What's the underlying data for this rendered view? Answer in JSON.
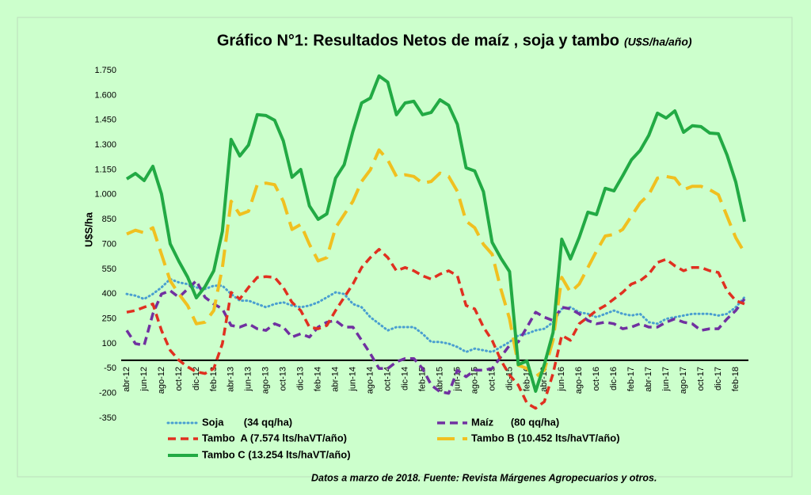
{
  "chart_data": {
    "type": "line",
    "title": "Gráfico N°1: Resultados Netos de maíz , soja y tambo",
    "subtitle": "(U$S/ha/año)",
    "y_label": "U$S/ha",
    "footnote": "Datos a marzo de 2018. Fuente: Revista Márgenes Agropecuarios y otros.",
    "grid": false,
    "zero_line": true,
    "ylim": [
      -350,
      1750
    ],
    "yticks": [
      -350,
      -200,
      -50,
      100,
      250,
      400,
      550,
      700,
      850,
      {
        "value": 1000,
        "label": "1.000"
      },
      {
        "value": 1150,
        "label": "1.150"
      },
      {
        "value": 1300,
        "label": "1.300"
      },
      {
        "value": 1450,
        "label": "1.450"
      },
      {
        "value": 1600,
        "label": "1.600"
      },
      {
        "value": 1750,
        "label": "1.750"
      }
    ],
    "categories": [
      "abr-12",
      null,
      "jun-12",
      null,
      "ago-12",
      null,
      "oct-12",
      null,
      "dic-12",
      null,
      "feb-13",
      null,
      "abr-13",
      null,
      "jun-13",
      null,
      "ago-13",
      null,
      "oct-13",
      null,
      "dic-13",
      null,
      "feb-14",
      null,
      "abr-14",
      null,
      "jun-14",
      null,
      "ago-14",
      null,
      "oct-14",
      null,
      "dic-14",
      null,
      "feb-15",
      null,
      "abr-15",
      null,
      "jun-15",
      null,
      "ago-15",
      null,
      "oct-15",
      null,
      "dic-15",
      null,
      "feb-16",
      null,
      "abr-16",
      null,
      "jun-16",
      null,
      "ago-16",
      null,
      "oct-16",
      null,
      "dic-16",
      null,
      "feb-17",
      null,
      "abr-17",
      null,
      "jun-17",
      null,
      "ago-17",
      null,
      "oct-17",
      null,
      "dic-17",
      null,
      "feb-18",
      null
    ],
    "series": [
      {
        "name": "Soja       (34 qq/ha)",
        "color": "#4a9fd0",
        "style": "dotted",
        "values": [
          400,
          390,
          370,
          400,
          440,
          490,
          470,
          460,
          440,
          430,
          450,
          450,
          400,
          360,
          360,
          340,
          320,
          340,
          350,
          330,
          320,
          330,
          350,
          380,
          410,
          400,
          340,
          320,
          260,
          220,
          180,
          200,
          200,
          200,
          160,
          110,
          110,
          100,
          80,
          50,
          70,
          60,
          50,
          80,
          110,
          150,
          160,
          180,
          190,
          230,
          310,
          320,
          290,
          280,
          260,
          280,
          300,
          280,
          270,
          280,
          230,
          220,
          250,
          260,
          270,
          280,
          280,
          280,
          270,
          280,
          320,
          380
        ]
      },
      {
        "name": "Maíz      (80 qq/ha)",
        "color": "#7030a0",
        "style": "dashed",
        "values": [
          180,
          100,
          90,
          280,
          400,
          420,
          380,
          430,
          480,
          380,
          340,
          310,
          210,
          200,
          220,
          190,
          180,
          220,
          200,
          140,
          160,
          140,
          200,
          230,
          240,
          200,
          200,
          120,
          40,
          -50,
          -50,
          -10,
          10,
          10,
          -50,
          -150,
          -190,
          -200,
          -60,
          -100,
          -60,
          -60,
          -50,
          20,
          90,
          110,
          200,
          290,
          260,
          240,
          320,
          310,
          280,
          240,
          220,
          230,
          220,
          190,
          200,
          220,
          200,
          200,
          230,
          250,
          230,
          220,
          180,
          190,
          190,
          250,
          300,
          370
        ]
      },
      {
        "name": "Tambo  A (7.574 lts/haVT/año)",
        "color": "#e03020",
        "style": "dashed",
        "values": [
          290,
          300,
          320,
          340,
          180,
          60,
          0,
          -40,
          -70,
          -80,
          -50,
          100,
          410,
          370,
          440,
          500,
          505,
          500,
          440,
          350,
          300,
          200,
          190,
          210,
          300,
          380,
          460,
          560,
          620,
          670,
          620,
          540,
          560,
          540,
          510,
          490,
          520,
          540,
          510,
          330,
          310,
          200,
          120,
          0,
          -90,
          -150,
          -260,
          -290,
          -250,
          -80,
          150,
          120,
          220,
          260,
          300,
          330,
          370,
          410,
          460,
          480,
          520,
          590,
          610,
          570,
          540,
          560,
          560,
          540,
          530,
          420,
          360,
          340
        ]
      },
      {
        "name": "Tambo B (10.452 lts/haVT/año)",
        "color": "#f0c020",
        "style": "longdash",
        "values": [
          762,
          785,
          770,
          800,
          640,
          480,
          400,
          330,
          220,
          230,
          300,
          560,
          960,
          880,
          900,
          1060,
          1070,
          1060,
          960,
          790,
          820,
          700,
          600,
          620,
          800,
          880,
          960,
          1080,
          1150,
          1270,
          1210,
          1110,
          1120,
          1110,
          1070,
          1080,
          1130,
          1110,
          1020,
          840,
          800,
          700,
          640,
          430,
          250,
          -30,
          -50,
          -100,
          -60,
          120,
          500,
          410,
          460,
          560,
          660,
          750,
          760,
          790,
          870,
          950,
          1000,
          1100,
          1110,
          1100,
          1030,
          1050,
          1050,
          1030,
          1000,
          870,
          740,
          650
        ]
      },
      {
        "name": "Tambo C (13.254 lts/haVT/año)",
        "color": "#22aa44",
        "style": "solid",
        "values": [
          1095,
          1128,
          1085,
          1171,
          1004,
          703,
          597,
          502,
          377,
          444,
          540,
          779,
          1334,
          1234,
          1300,
          1483,
          1478,
          1449,
          1325,
          1105,
          1152,
          932,
          851,
          884,
          1100,
          1181,
          1382,
          1554,
          1583,
          1717,
          1679,
          1483,
          1554,
          1564,
          1483,
          1497,
          1573,
          1540,
          1425,
          1162,
          1143,
          1018,
          712,
          617,
          535,
          -26,
          -5,
          -187,
          -26,
          167,
          731,
          612,
          741,
          894,
          880,
          1038,
          1023,
          1114,
          1210,
          1267,
          1358,
          1492,
          1463,
          1506,
          1377,
          1416,
          1411,
          1372,
          1368,
          1239,
          1076,
          837
        ]
      }
    ]
  }
}
